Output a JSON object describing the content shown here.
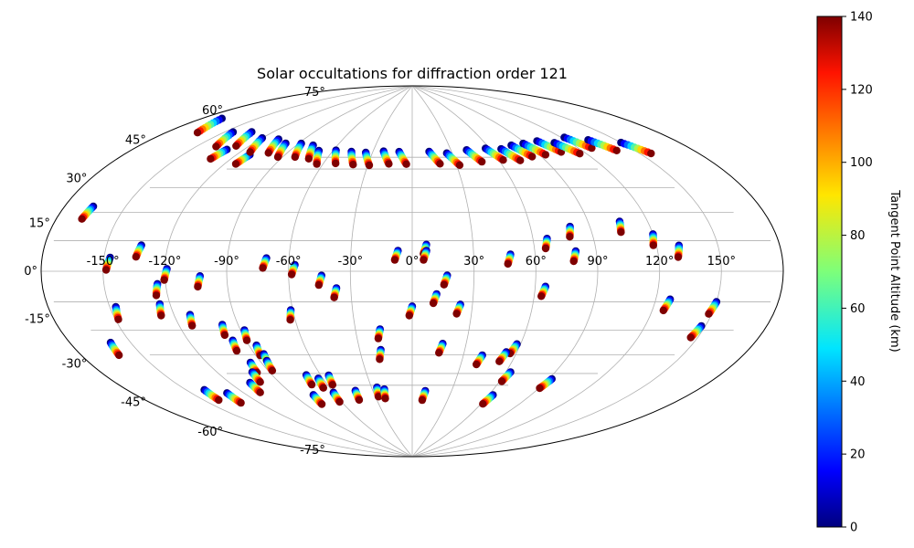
{
  "chart_data": {
    "type": "scatter",
    "projection": "Aitoff/Hammer (all-sky map, longitude/latitude in degrees)",
    "title": "Solar occultations for diffraction order 121",
    "lon_ticks": [
      -150,
      -120,
      -90,
      -60,
      -30,
      0,
      30,
      60,
      90,
      120,
      150
    ],
    "lon_tick_labels": [
      "-150°",
      "-120°",
      "-90°",
      "-60°",
      "-30°",
      "0°",
      "30°",
      "60°",
      "90°",
      "120°",
      "150°"
    ],
    "lat_ticks": [
      -75,
      -60,
      -45,
      -30,
      -15,
      0,
      15,
      30,
      45,
      60,
      75
    ],
    "lat_tick_labels": [
      "-75°",
      "-60°",
      "-45°",
      "-30°",
      "-15°",
      "0°",
      "15°",
      "30°",
      "45°",
      "60°",
      "75°"
    ],
    "grid": true,
    "colorbar": {
      "label": "Tangent Point Altitude (km)",
      "min": 0,
      "max": 140,
      "ticks": [
        0,
        20,
        40,
        60,
        80,
        100,
        120,
        140
      ],
      "tick_labels": [
        "0",
        "20",
        "40",
        "60",
        "80",
        "100",
        "120",
        "140"
      ],
      "colormap": "jet"
    },
    "altitude_range_km": [
      0,
      140
    ],
    "occultations": [
      {
        "lon": -166,
        "lat": 22,
        "dir": "-"
      },
      {
        "lon": -147,
        "lat": 5,
        "dir": "-"
      },
      {
        "lon": -133,
        "lat": 10,
        "dir": "-"
      },
      {
        "lon": -130,
        "lat": 50,
        "dir": "-"
      },
      {
        "lon": -119,
        "lat": 1,
        "dir": "-"
      },
      {
        "lon": -112,
        "lat": 50,
        "dir": "-"
      },
      {
        "lon": -103,
        "lat": -2,
        "dir": "-"
      },
      {
        "lon": -71,
        "lat": 6,
        "dir": "-"
      },
      {
        "lon": -57,
        "lat": 3,
        "dir": "-"
      },
      {
        "lon": -44,
        "lat": -2,
        "dir": "-"
      },
      {
        "lon": -37,
        "lat": -8,
        "dir": "-"
      },
      {
        "lon": 0,
        "lat": -17,
        "dir": "-"
      },
      {
        "lon": 7,
        "lat": 13,
        "dir": "-"
      },
      {
        "lon": 17,
        "lat": -2,
        "dir": "-"
      },
      {
        "lon": 12,
        "lat": -11,
        "dir": "-"
      },
      {
        "lon": 24,
        "lat": -16,
        "dir": "-"
      },
      {
        "lon": 48,
        "lat": 8,
        "dir": "-"
      },
      {
        "lon": 65,
        "lat": -7,
        "dir": "-"
      },
      {
        "lon": 67,
        "lat": 15,
        "dir": "-"
      },
      {
        "lon": 80,
        "lat": 9,
        "dir": "-"
      },
      {
        "lon": 80,
        "lat": 20,
        "dir": "-"
      },
      {
        "lon": 106,
        "lat": 21,
        "dir": "-"
      },
      {
        "lon": 120,
        "lat": 15,
        "dir": "-"
      },
      {
        "lon": 131,
        "lat": 10,
        "dir": "-"
      },
      {
        "lon": 127,
        "lat": -11,
        "dir": "-"
      },
      {
        "lon": 150,
        "lat": -11,
        "dir": "-"
      },
      {
        "lon": 148,
        "lat": -20,
        "dir": "-"
      },
      {
        "lon": -160,
        "lat": -25,
        "dir": "-"
      },
      {
        "lon": -147,
        "lat": -13,
        "dir": "-"
      },
      {
        "lon": -125,
        "lat": -13,
        "dir": "-"
      },
      {
        "lon": -124,
        "lat": -5,
        "dir": "-"
      },
      {
        "lon": -112,
        "lat": -18,
        "dir": "-"
      },
      {
        "lon": -98,
        "lat": -23,
        "dir": "-"
      },
      {
        "lon": -97,
        "lat": -30,
        "dir": "-"
      },
      {
        "lon": -88,
        "lat": -26,
        "dir": "-"
      },
      {
        "lon": -86,
        "lat": -33,
        "dir": "-"
      },
      {
        "lon": -85,
        "lat": -37,
        "dir": "-"
      },
      {
        "lon": -61,
        "lat": -18,
        "dir": "-"
      },
      {
        "lon": -17,
        "lat": -28,
        "dir": "-"
      },
      {
        "lon": -18,
        "lat": -38,
        "dir": "-"
      },
      {
        "lon": 17,
        "lat": -35,
        "dir": "-"
      },
      {
        "lon": 41,
        "lat": -40,
        "dir": "-"
      },
      {
        "lon": 58,
        "lat": -34,
        "dir": "-"
      },
      {
        "lon": 54,
        "lat": -38,
        "dir": "-"
      },
      {
        "lon": 63,
        "lat": -47,
        "dir": "-"
      },
      {
        "lon": 92,
        "lat": -48,
        "dir": "-"
      },
      {
        "lon": -7,
        "lat": 10,
        "dir": "-"
      },
      {
        "lon": 7,
        "lat": 10,
        "dir": "-"
      },
      {
        "lon": -96,
        "lat": -40,
        "dir": "-"
      },
      {
        "lon": -86,
        "lat": -40,
        "dir": "-"
      },
      {
        "lon": -140,
        "lat": -47,
        "dir": "-"
      },
      {
        "lon": -130,
        "lat": -50,
        "dir": "-"
      },
      {
        "lon": -108,
        "lat": -48,
        "dir": "-"
      },
      {
        "lon": -100,
        "lat": -44,
        "dir": "-"
      },
      {
        "lon": -69,
        "lat": -48,
        "dir": "-"
      },
      {
        "lon": -63,
        "lat": -50,
        "dir": "-"
      },
      {
        "lon": -55,
        "lat": -49,
        "dir": "-"
      },
      {
        "lon": -76,
        "lat": -57,
        "dir": "-"
      },
      {
        "lon": -60,
        "lat": -57,
        "dir": "-"
      },
      {
        "lon": -43,
        "lat": -57,
        "dir": "-"
      },
      {
        "lon": -26,
        "lat": -56,
        "dir": "-"
      },
      {
        "lon": -21,
        "lat": -57,
        "dir": "-"
      },
      {
        "lon": 10,
        "lat": -58,
        "dir": "-"
      },
      {
        "lon": 63,
        "lat": -58,
        "dir": "-"
      }
    ],
    "polar_tracks": [
      {
        "lon": -170,
        "lat": 58,
        "dir": "+"
      },
      {
        "lon": -145,
        "lat": 56,
        "dir": "+"
      },
      {
        "lon": -134,
        "lat": 58,
        "dir": "+"
      },
      {
        "lon": -120,
        "lat": 57,
        "dir": "+"
      },
      {
        "lon": -108,
        "lat": 58,
        "dir": "+"
      },
      {
        "lon": -99,
        "lat": 57,
        "dir": "+"
      },
      {
        "lon": -88,
        "lat": 58,
        "dir": "+"
      },
      {
        "lon": -78,
        "lat": 58,
        "dir": "+"
      },
      {
        "lon": -70,
        "lat": 56,
        "dir": "+"
      },
      {
        "lon": -58,
        "lat": 57,
        "dir": "+"
      },
      {
        "lon": -46,
        "lat": 57,
        "dir": "+"
      },
      {
        "lon": -35,
        "lat": 57,
        "dir": "+"
      },
      {
        "lon": -22,
        "lat": 58,
        "dir": "+"
      },
      {
        "lon": -10,
        "lat": 58,
        "dir": "+"
      },
      {
        "lon": 13,
        "lat": 58,
        "dir": "+"
      },
      {
        "lon": 26,
        "lat": 57,
        "dir": "+"
      },
      {
        "lon": 42,
        "lat": 58,
        "dir": "+"
      },
      {
        "lon": 57,
        "lat": 58,
        "dir": "+"
      },
      {
        "lon": 68,
        "lat": 57,
        "dir": "+"
      },
      {
        "lon": 78,
        "lat": 58,
        "dir": "+"
      },
      {
        "lon": 88,
        "lat": 58,
        "dir": "+"
      },
      {
        "lon": 100,
        "lat": 58,
        "dir": "+"
      },
      {
        "lon": 110,
        "lat": 56,
        "dir": "+"
      },
      {
        "lon": 122,
        "lat": 57,
        "dir": "+"
      },
      {
        "lon": 134,
        "lat": 54,
        "dir": "+"
      },
      {
        "lon": 150,
        "lat": 50,
        "dir": "+"
      }
    ],
    "marker": "filled circle, colour-coded by altitude; each occultation is a short diagonal track of ~10 points from 0 km (navy) to 140 km (dark red)"
  }
}
